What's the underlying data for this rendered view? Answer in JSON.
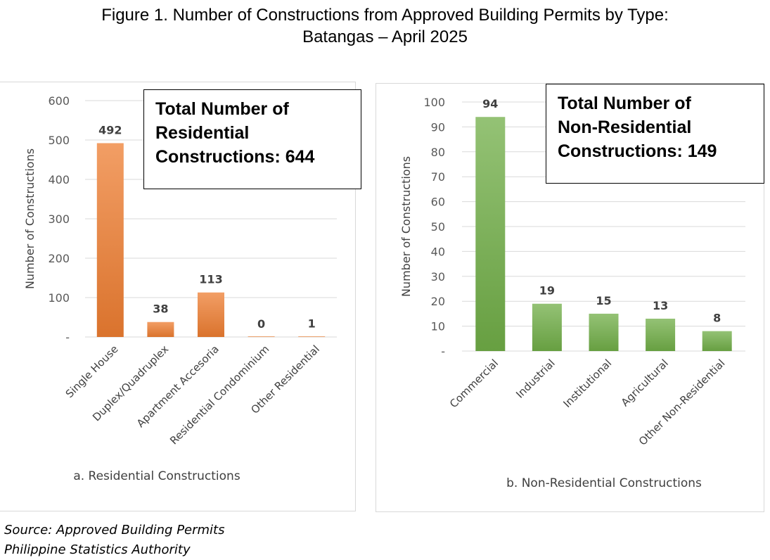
{
  "figure": {
    "title_line1": "Figure 1.  Number of Constructions from Approved Building Permits by Type:",
    "title_line2": "Batangas – April 2025"
  },
  "source": {
    "line1": "Source: Approved Building Permits",
    "line2": "Philippine Statistics Authority"
  },
  "colors": {
    "residential": "#ED7D31",
    "non_residential": "#70AD47"
  },
  "chart_data": [
    {
      "type": "bar",
      "title": "a. Residential Constructions",
      "ylabel": "Number of Constructions",
      "xlabel": "",
      "categories": [
        "Single House",
        "Duplex/Quadruplex",
        "Apartment Accesoria",
        "Residential Condominium",
        "Other Residential"
      ],
      "values": [
        492,
        38,
        113,
        0,
        1
      ],
      "ylim": [
        0,
        600
      ],
      "yticks": [
        0,
        100,
        200,
        300,
        400,
        500,
        600
      ],
      "ytick_labels": [
        "-",
        "100",
        "200",
        "300",
        "400",
        "500",
        "600"
      ],
      "grid": true,
      "total_box": {
        "line1": "Total Number of",
        "line2": "Residential",
        "line3": "Constructions: 644"
      }
    },
    {
      "type": "bar",
      "title": "b. Non-Residential Constructions",
      "ylabel": "Number of Constructions",
      "xlabel": "",
      "categories": [
        "Commercial",
        "Industrial",
        "Institutional",
        "Agricultural",
        "Other Non-Residential"
      ],
      "values": [
        94,
        19,
        15,
        13,
        8
      ],
      "ylim": [
        0,
        100
      ],
      "yticks": [
        0,
        10,
        20,
        30,
        40,
        50,
        60,
        70,
        80,
        90,
        100
      ],
      "ytick_labels": [
        "-",
        "10",
        "20",
        "30",
        "40",
        "50",
        "60",
        "70",
        "80",
        "90",
        "100"
      ],
      "grid": true,
      "total_box": {
        "line1": "Total Number of",
        "line2": "Non-Residential",
        "line3": "Constructions: 149"
      }
    }
  ]
}
